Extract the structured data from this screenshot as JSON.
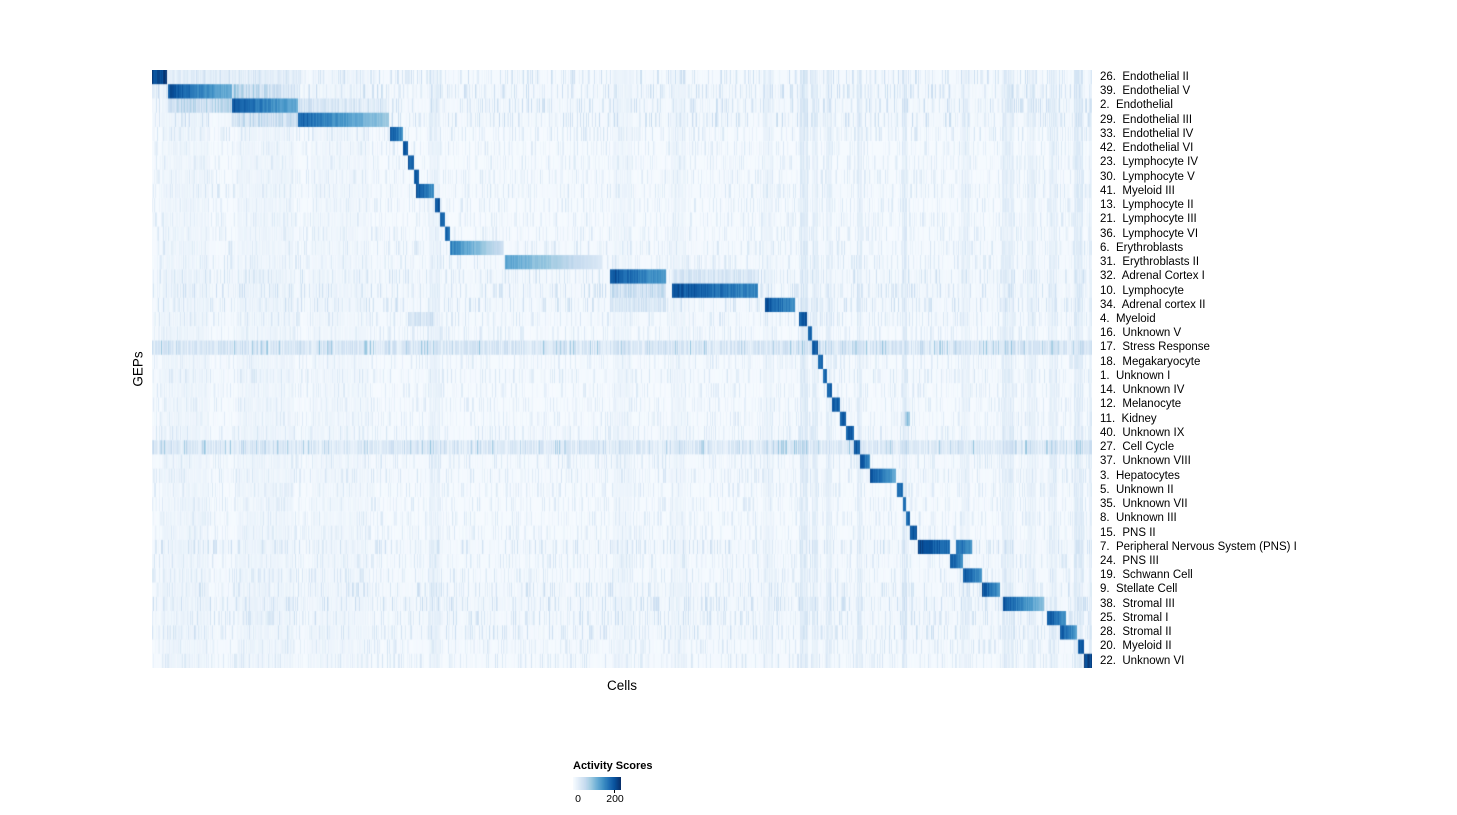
{
  "chart_data": {
    "type": "heatmap",
    "title": "",
    "xlabel": "Cells",
    "ylabel": "GEPs",
    "legend_position": "bottom",
    "grid": false,
    "colormap": "Blues",
    "color_stops": [
      "#f7fbff",
      "#deebf7",
      "#c6dbef",
      "#9ecae1",
      "#6baed6",
      "#4292c6",
      "#2171b5",
      "#08519c",
      "#08306b"
    ],
    "colorbar": {
      "title": "Activity Scores",
      "min": 0,
      "max": 200,
      "tick_min": "0",
      "tick_max": "200"
    },
    "x_axis": {
      "label": "Cells",
      "ticks": "none",
      "range_note": "cells ordered by cluster, shown as fraction 0-1"
    },
    "rows": [
      {
        "label": "26.  Endothelial II",
        "noise": 0.45,
        "base": 0.02,
        "blocks": [
          {
            "s": 0.0,
            "e": 0.015,
            "v": 1.0
          },
          {
            "s": 0.015,
            "e": 0.16,
            "v": 0.14,
            "j": 1
          }
        ]
      },
      {
        "label": "39.  Endothelial V",
        "noise": 0.5,
        "base": 0.03,
        "blocks": [
          {
            "s": 0.016,
            "e": 0.085,
            "v": 0.95,
            "g": 0.45
          },
          {
            "s": 0.085,
            "e": 0.155,
            "v": 0.45,
            "g": 0.55,
            "j": 1
          }
        ]
      },
      {
        "label": "2.  Endothelial",
        "noise": 0.5,
        "base": 0.03,
        "blocks": [
          {
            "s": 0.016,
            "e": 0.085,
            "v": 0.35,
            "j": 1
          },
          {
            "s": 0.085,
            "e": 0.155,
            "v": 0.92,
            "g": 0.4
          },
          {
            "s": 0.155,
            "e": 0.25,
            "v": 0.25,
            "g": 0.5,
            "j": 1
          }
        ]
      },
      {
        "label": "29.  Endothelial III",
        "noise": 0.5,
        "base": 0.03,
        "blocks": [
          {
            "s": 0.085,
            "e": 0.155,
            "v": 0.3,
            "j": 1
          },
          {
            "s": 0.155,
            "e": 0.252,
            "v": 0.88,
            "g": 0.55
          }
        ]
      },
      {
        "label": "33.  Endothelial IV",
        "noise": 0.35,
        "base": 0.01,
        "blocks": [
          {
            "s": 0.253,
            "e": 0.266,
            "v": 0.95,
            "g": 0.3
          }
        ]
      },
      {
        "label": "42.  Endothelial VI",
        "noise": 0.3,
        "base": 0.01,
        "blocks": [
          {
            "s": 0.266,
            "e": 0.272,
            "v": 0.9
          }
        ]
      },
      {
        "label": "23.  Lymphocyte IV",
        "noise": 0.3,
        "base": 0.01,
        "blocks": [
          {
            "s": 0.272,
            "e": 0.278,
            "v": 0.9
          }
        ]
      },
      {
        "label": "30.  Lymphocyte V",
        "noise": 0.3,
        "base": 0.01,
        "blocks": [
          {
            "s": 0.278,
            "e": 0.284,
            "v": 0.9
          }
        ]
      },
      {
        "label": "41.  Myeloid III",
        "noise": 0.35,
        "base": 0.02,
        "blocks": [
          {
            "s": 0.28,
            "e": 0.3,
            "v": 0.95,
            "g": 0.3
          }
        ]
      },
      {
        "label": "13.  Lymphocyte II",
        "noise": 0.3,
        "base": 0.01,
        "blocks": [
          {
            "s": 0.301,
            "e": 0.306,
            "v": 0.9
          }
        ]
      },
      {
        "label": "21.  Lymphocyte III",
        "noise": 0.3,
        "base": 0.01,
        "blocks": [
          {
            "s": 0.306,
            "e": 0.311,
            "v": 0.88
          }
        ]
      },
      {
        "label": "36.  Lymphocyte VI",
        "noise": 0.3,
        "base": 0.01,
        "blocks": [
          {
            "s": 0.311,
            "e": 0.316,
            "v": 0.85
          }
        ]
      },
      {
        "label": "6.  Erythroblasts",
        "noise": 0.35,
        "base": 0.02,
        "blocks": [
          {
            "s": 0.316,
            "e": 0.373,
            "v": 0.75,
            "g": 0.7
          }
        ]
      },
      {
        "label": "31.  Erythroblasts II",
        "noise": 0.35,
        "base": 0.02,
        "blocks": [
          {
            "s": 0.375,
            "e": 0.478,
            "v": 0.6,
            "g": 0.75
          }
        ]
      },
      {
        "label": "32.  Adrenal Cortex I",
        "noise": 0.45,
        "base": 0.03,
        "blocks": [
          {
            "s": 0.487,
            "e": 0.546,
            "v": 0.95,
            "g": 0.35
          },
          {
            "s": 0.553,
            "e": 0.645,
            "v": 0.22,
            "j": 1
          }
        ]
      },
      {
        "label": "10.  Lymphocyte",
        "noise": 0.45,
        "base": 0.03,
        "blocks": [
          {
            "s": 0.487,
            "e": 0.546,
            "v": 0.3,
            "j": 1
          },
          {
            "s": 0.553,
            "e": 0.644,
            "v": 0.95,
            "g": 0.25
          }
        ]
      },
      {
        "label": "34.  Adrenal cortex II",
        "noise": 0.45,
        "base": 0.03,
        "blocks": [
          {
            "s": 0.487,
            "e": 0.546,
            "v": 0.22,
            "j": 1
          },
          {
            "s": 0.652,
            "e": 0.684,
            "v": 0.95,
            "g": 0.3
          }
        ]
      },
      {
        "label": "4.  Myeloid",
        "noise": 0.35,
        "base": 0.02,
        "blocks": [
          {
            "s": 0.272,
            "e": 0.3,
            "v": 0.25,
            "j": 1
          },
          {
            "s": 0.688,
            "e": 0.696,
            "v": 0.9
          }
        ]
      },
      {
        "label": "16.  Unknown V",
        "noise": 0.3,
        "base": 0.01,
        "blocks": [
          {
            "s": 0.697,
            "e": 0.702,
            "v": 0.85
          }
        ]
      },
      {
        "label": "17.  Stress Response",
        "noise": 0.8,
        "base": 0.22,
        "blocks": [
          {
            "s": 0.702,
            "e": 0.708,
            "v": 0.92
          }
        ]
      },
      {
        "label": "18.  Megakaryocyte",
        "noise": 0.3,
        "base": 0.01,
        "blocks": [
          {
            "s": 0.708,
            "e": 0.713,
            "v": 0.85
          }
        ]
      },
      {
        "label": "1.  Unknown I",
        "noise": 0.35,
        "base": 0.02,
        "blocks": [
          {
            "s": 0.713,
            "e": 0.718,
            "v": 0.85
          }
        ]
      },
      {
        "label": "14.  Unknown IV",
        "noise": 0.3,
        "base": 0.01,
        "blocks": [
          {
            "s": 0.718,
            "e": 0.723,
            "v": 0.85
          }
        ]
      },
      {
        "label": "12.  Melanocyte",
        "noise": 0.3,
        "base": 0.01,
        "blocks": [
          {
            "s": 0.723,
            "e": 0.731,
            "v": 0.9
          }
        ]
      },
      {
        "label": "11.  Kidney",
        "noise": 0.3,
        "base": 0.01,
        "blocks": [
          {
            "s": 0.731,
            "e": 0.738,
            "v": 0.9
          },
          {
            "s": 0.8,
            "e": 0.806,
            "v": 0.45,
            "j": 1
          }
        ]
      },
      {
        "label": "40.  Unknown IX",
        "noise": 0.35,
        "base": 0.02,
        "blocks": [
          {
            "s": 0.738,
            "e": 0.746,
            "v": 0.9
          }
        ]
      },
      {
        "label": "27.  Cell Cycle",
        "noise": 0.8,
        "base": 0.18,
        "blocks": [
          {
            "s": 0.746,
            "e": 0.753,
            "v": 0.92
          }
        ]
      },
      {
        "label": "37.  Unknown VIII",
        "noise": 0.35,
        "base": 0.02,
        "blocks": [
          {
            "s": 0.753,
            "e": 0.763,
            "v": 0.95,
            "g": 0.3
          }
        ]
      },
      {
        "label": "3.  Hepatocytes",
        "noise": 0.35,
        "base": 0.02,
        "blocks": [
          {
            "s": 0.763,
            "e": 0.791,
            "v": 0.95,
            "g": 0.4
          }
        ]
      },
      {
        "label": "5.  Unknown II",
        "noise": 0.3,
        "base": 0.01,
        "blocks": [
          {
            "s": 0.792,
            "e": 0.798,
            "v": 0.85
          }
        ]
      },
      {
        "label": "35.  Unknown VII",
        "noise": 0.3,
        "base": 0.01,
        "blocks": [
          {
            "s": 0.798,
            "e": 0.802,
            "v": 0.85
          }
        ]
      },
      {
        "label": "8.  Unknown III",
        "noise": 0.3,
        "base": 0.01,
        "blocks": [
          {
            "s": 0.802,
            "e": 0.806,
            "v": 0.85
          }
        ]
      },
      {
        "label": "15.  PNS II",
        "noise": 0.3,
        "base": 0.01,
        "blocks": [
          {
            "s": 0.806,
            "e": 0.813,
            "v": 0.9
          }
        ]
      },
      {
        "label": "7.  Peripheral Nervous System (PNS) I",
        "noise": 0.45,
        "base": 0.03,
        "blocks": [
          {
            "s": 0.814,
            "e": 0.848,
            "v": 1.0,
            "g": 0.2
          },
          {
            "s": 0.855,
            "e": 0.872,
            "v": 0.85,
            "g": 0.2
          }
        ]
      },
      {
        "label": "24.  PNS III",
        "noise": 0.35,
        "base": 0.02,
        "blocks": [
          {
            "s": 0.848,
            "e": 0.862,
            "v": 0.95,
            "g": 0.3
          }
        ]
      },
      {
        "label": "19.  Schwann Cell",
        "noise": 0.35,
        "base": 0.02,
        "blocks": [
          {
            "s": 0.862,
            "e": 0.882,
            "v": 0.95,
            "g": 0.3
          }
        ]
      },
      {
        "label": "9.  Stellate Cell",
        "noise": 0.45,
        "base": 0.03,
        "blocks": [
          {
            "s": 0.882,
            "e": 0.902,
            "v": 0.95,
            "g": 0.3
          }
        ]
      },
      {
        "label": "38.  Stromal III",
        "noise": 0.5,
        "base": 0.04,
        "blocks": [
          {
            "s": 0.905,
            "e": 0.948,
            "v": 0.92,
            "g": 0.5
          }
        ]
      },
      {
        "label": "25.  Stromal I",
        "noise": 0.45,
        "base": 0.03,
        "blocks": [
          {
            "s": 0.952,
            "e": 0.972,
            "v": 0.95,
            "g": 0.3
          }
        ]
      },
      {
        "label": "28.  Stromal II",
        "noise": 0.45,
        "base": 0.03,
        "blocks": [
          {
            "s": 0.965,
            "e": 0.983,
            "v": 0.92,
            "g": 0.3
          }
        ]
      },
      {
        "label": "20.  Myeloid II",
        "noise": 0.35,
        "base": 0.02,
        "blocks": [
          {
            "s": 0.985,
            "e": 0.991,
            "v": 0.9
          }
        ]
      },
      {
        "label": "22.  Unknown VI",
        "noise": 0.35,
        "base": 0.02,
        "blocks": [
          {
            "s": 0.991,
            "e": 1.001,
            "v": 1.0
          }
        ]
      }
    ],
    "vertical_bands": [
      {
        "pos": 0.035,
        "w": 0.05,
        "v": 0.1
      },
      {
        "pos": 0.12,
        "w": 0.06,
        "v": 0.1
      },
      {
        "pos": 0.2,
        "w": 0.06,
        "v": 0.08
      },
      {
        "pos": 0.3,
        "w": 0.012,
        "v": 0.15
      },
      {
        "pos": 0.5,
        "w": 0.02,
        "v": 0.1
      },
      {
        "pos": 0.56,
        "w": 0.016,
        "v": 0.1
      },
      {
        "pos": 0.655,
        "w": 0.01,
        "v": 0.12
      },
      {
        "pos": 0.693,
        "w": 0.008,
        "v": 0.25
      },
      {
        "pos": 0.705,
        "w": 0.006,
        "v": 0.2
      },
      {
        "pos": 0.72,
        "w": 0.006,
        "v": 0.18
      },
      {
        "pos": 0.752,
        "w": 0.006,
        "v": 0.22
      },
      {
        "pos": 0.8,
        "w": 0.006,
        "v": 0.25
      },
      {
        "pos": 0.865,
        "w": 0.01,
        "v": 0.15
      },
      {
        "pos": 0.91,
        "w": 0.012,
        "v": 0.2
      },
      {
        "pos": 0.935,
        "w": 0.01,
        "v": 0.15
      },
      {
        "pos": 0.958,
        "w": 0.008,
        "v": 0.18
      },
      {
        "pos": 0.985,
        "w": 0.01,
        "v": 0.25
      },
      {
        "pos": 0.998,
        "w": 0.004,
        "v": 0.2
      }
    ]
  }
}
